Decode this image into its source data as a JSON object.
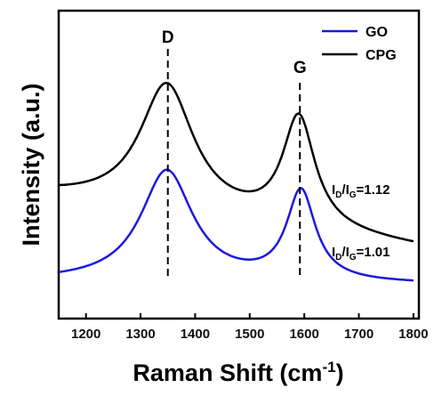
{
  "chart_data": {
    "type": "line",
    "xlabel_main": "Raman Shift (cm",
    "xlabel_sup": "-1",
    "xlabel_end": ")",
    "ylabel": "Intensity (a.u.)",
    "xlim": [
      1150,
      1810
    ],
    "xticks": [
      1200,
      1300,
      1400,
      1500,
      1600,
      1700,
      1800
    ],
    "yticks_shown": false,
    "legend_position": "top-right",
    "series": [
      {
        "name": "GO",
        "color": "#1a1adc",
        "baseline": 0.08,
        "peaks": [
          {
            "center": 1348,
            "height": 0.72,
            "width": 58
          },
          {
            "center": 1594,
            "height": 0.58,
            "width": 32
          }
        ],
        "baseline_slope": {
          "start": 0.08,
          "end": 0.06
        }
      },
      {
        "name": "CPG",
        "color": "#000000",
        "baseline": 0.63,
        "peaks": [
          {
            "center": 1348,
            "height": 0.82,
            "width": 60
          },
          {
            "center": 1590,
            "height": 0.71,
            "width": 36
          }
        ],
        "baseline_slope": {
          "start": 0.63,
          "end": 0.3
        }
      }
    ],
    "annotations": [
      {
        "text_main": "I",
        "sub1": "D",
        "mid": "/I",
        "sub2": "G",
        "value": "=1.12"
      },
      {
        "text_main": "I",
        "sub1": "D",
        "mid": "/I",
        "sub2": "G",
        "value": "=1.01"
      }
    ],
    "peak_labels": [
      {
        "label": "D",
        "x": 1350
      },
      {
        "label": "G",
        "x": 1592
      }
    ]
  }
}
